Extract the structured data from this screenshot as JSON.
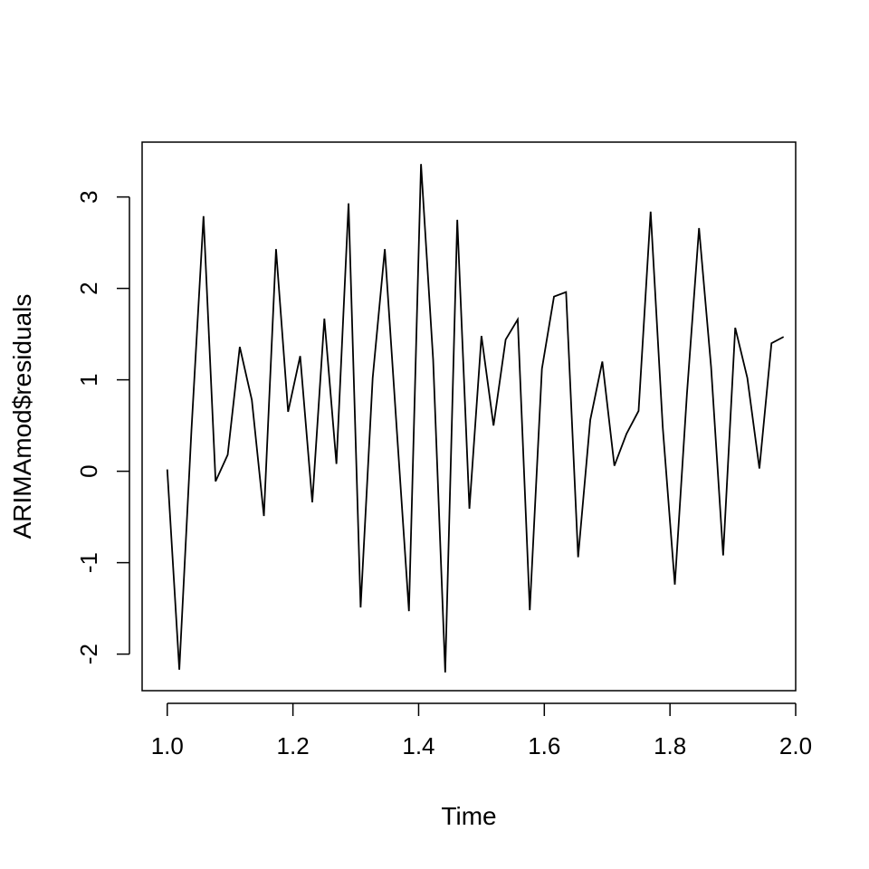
{
  "chart_data": {
    "type": "line",
    "title": "",
    "xlabel": "Time",
    "ylabel": "ARIMAmod$residuals",
    "xlim": [
      0.96,
      2.0
    ],
    "ylim": [
      -2.4,
      3.6
    ],
    "xticks": [
      "1.0",
      "1.2",
      "1.4",
      "1.6",
      "1.8",
      "2.0"
    ],
    "yticks": [
      "-2",
      "-1",
      "0",
      "1",
      "2",
      "3"
    ],
    "grid": false,
    "series": [
      {
        "x": [
          1.0,
          1.0192,
          1.0385,
          1.0577,
          1.0769,
          1.0962,
          1.1154,
          1.1346,
          1.1538,
          1.1731,
          1.1923,
          1.2115,
          1.2308,
          1.25,
          1.2692,
          1.2885,
          1.3077,
          1.3269,
          1.3462,
          1.3654,
          1.3846,
          1.4038,
          1.4231,
          1.4423,
          1.4615,
          1.4808,
          1.5,
          1.5192,
          1.5385,
          1.5577,
          1.5769,
          1.5962,
          1.6154,
          1.6346,
          1.6538,
          1.6731,
          1.6923,
          1.7115,
          1.7308,
          1.75,
          1.7692,
          1.7885,
          1.8077,
          1.8269,
          1.8462,
          1.8654,
          1.8846,
          1.9038,
          1.9231,
          1.9423,
          1.9615,
          1.9808
        ],
        "values": [
          0.02,
          -2.17,
          0.45,
          2.79,
          -0.11,
          0.18,
          1.36,
          0.78,
          -0.49,
          2.43,
          0.65,
          1.26,
          -0.34,
          1.67,
          0.08,
          2.93,
          -1.49,
          1.02,
          2.43,
          0.44,
          -1.53,
          3.36,
          1.22,
          -2.2,
          2.75,
          -0.41,
          1.48,
          0.5,
          1.44,
          1.66,
          -1.52,
          1.12,
          1.91,
          1.96,
          -0.94,
          0.56,
          1.2,
          0.06,
          0.41,
          0.66,
          2.84,
          0.48,
          -1.24,
          0.84,
          2.66,
          1.14,
          -0.92,
          1.57,
          1.02,
          0.03,
          1.4,
          1.47
        ]
      }
    ]
  }
}
